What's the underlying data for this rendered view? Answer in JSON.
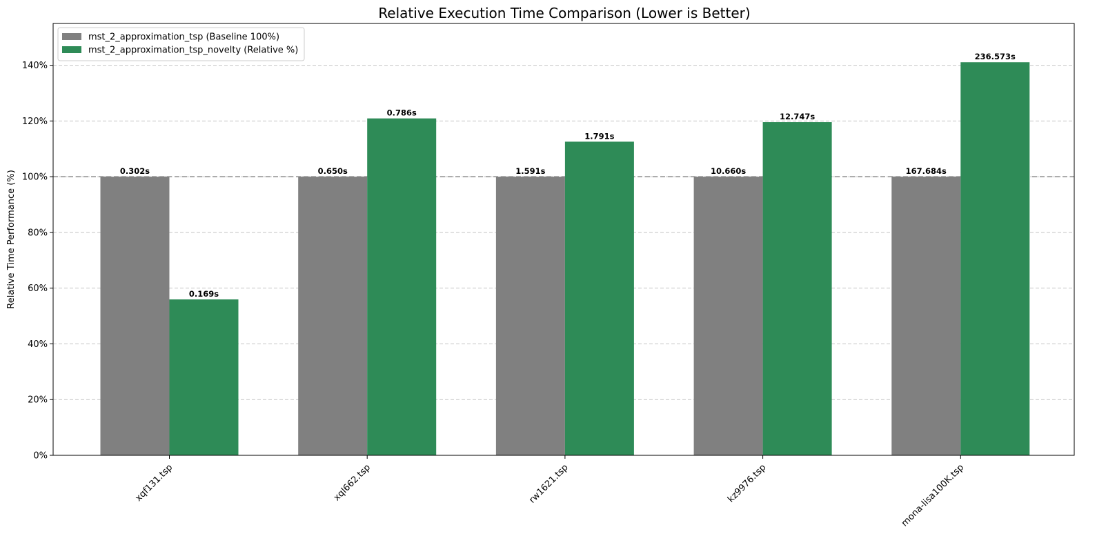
{
  "chart_data": {
    "type": "bar",
    "title": "Relative Execution Time Comparison (Lower is Better)",
    "xlabel": "",
    "ylabel": "Relative Time Performance (%)",
    "ylim": [
      0,
      155
    ],
    "yticks": [
      0,
      20,
      40,
      60,
      80,
      100,
      120,
      140
    ],
    "ytick_labels": [
      "0%",
      "20%",
      "40%",
      "60%",
      "80%",
      "100%",
      "120%",
      "140%"
    ],
    "grid": "y-dashed",
    "reference_line": 100,
    "legend_position": "top-left",
    "categories": [
      "xqf131.tsp",
      "xql662.tsp",
      "rw1621.tsp",
      "kz9976.tsp",
      "mona-lisa100K.tsp"
    ],
    "series": [
      {
        "name": "mst_2_approximation_tsp (Baseline 100%)",
        "color": "#808080",
        "values": [
          100,
          100,
          100,
          100,
          100
        ],
        "labels": [
          "0.302s",
          "0.650s",
          "1.591s",
          "10.660s",
          "167.684s"
        ]
      },
      {
        "name": "mst_2_approximation_tsp_novelty (Relative %)",
        "color": "#2e8b57",
        "values": [
          55.96,
          120.92,
          112.57,
          119.58,
          141.08
        ],
        "labels": [
          "0.169s",
          "0.786s",
          "1.791s",
          "12.747s",
          "236.573s"
        ]
      }
    ]
  }
}
